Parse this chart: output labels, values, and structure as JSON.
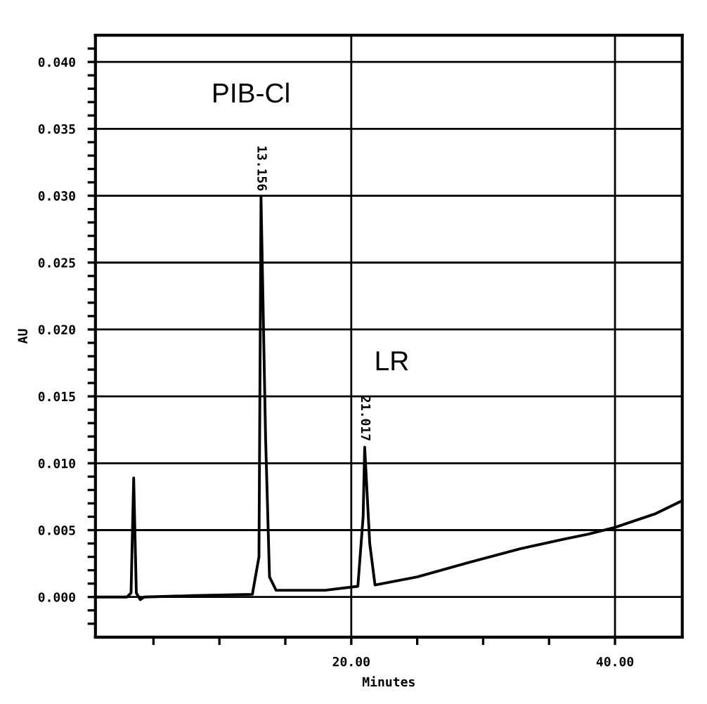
{
  "chart_data": {
    "type": "line",
    "xlabel": "Minutes",
    "ylabel": "AU",
    "x": [
      0.6,
      3.0,
      3.3,
      3.5,
      3.7,
      4.0,
      4.3,
      8.0,
      12.5,
      13.0,
      13.156,
      13.5,
      13.8,
      14.3,
      18.0,
      20.5,
      20.9,
      21.017,
      21.4,
      21.8,
      25.0,
      29.0,
      32.8,
      36.0,
      38.0,
      40.0,
      43.0,
      45.1
    ],
    "series": [
      {
        "color": "#000000",
        "values": [
          0.0,
          0.0,
          0.0003,
          0.0089,
          0.0003,
          -0.0002,
          0.0,
          0.0001,
          0.0002,
          0.003,
          0.0299,
          0.012,
          0.0015,
          0.0005,
          0.0005,
          0.0008,
          0.006,
          0.0112,
          0.004,
          0.0009,
          0.0015,
          0.0026,
          0.0036,
          0.0043,
          0.0047,
          0.0052,
          0.0062,
          0.0072
        ]
      }
    ],
    "xlim": [
      0.6,
      45.1
    ],
    "ylim": [
      -0.003,
      0.042
    ],
    "xticks": [
      {
        "value": 5,
        "label": null
      },
      {
        "value": 10,
        "label": null
      },
      {
        "value": 15,
        "label": null
      },
      {
        "value": 20,
        "label": "20.00"
      },
      {
        "value": 25,
        "label": null
      },
      {
        "value": 30,
        "label": null
      },
      {
        "value": 35,
        "label": null
      },
      {
        "value": 40,
        "label": "40.00"
      }
    ],
    "yticks": [
      {
        "value": -0.002,
        "label": null
      },
      {
        "value": -0.001,
        "label": null
      },
      {
        "value": 0.0,
        "label": "0.000"
      },
      {
        "value": 0.001,
        "label": null
      },
      {
        "value": 0.002,
        "label": null
      },
      {
        "value": 0.003,
        "label": null
      },
      {
        "value": 0.004,
        "label": null
      },
      {
        "value": 0.005,
        "label": "0.005"
      },
      {
        "value": 0.006,
        "label": null
      },
      {
        "value": 0.007,
        "label": null
      },
      {
        "value": 0.008,
        "label": null
      },
      {
        "value": 0.009,
        "label": null
      },
      {
        "value": 0.01,
        "label": "0.010"
      },
      {
        "value": 0.011,
        "label": null
      },
      {
        "value": 0.012,
        "label": null
      },
      {
        "value": 0.013,
        "label": null
      },
      {
        "value": 0.014,
        "label": null
      },
      {
        "value": 0.015,
        "label": "0.015"
      },
      {
        "value": 0.016,
        "label": null
      },
      {
        "value": 0.017,
        "label": null
      },
      {
        "value": 0.018,
        "label": null
      },
      {
        "value": 0.019,
        "label": null
      },
      {
        "value": 0.02,
        "label": "0.020"
      },
      {
        "value": 0.021,
        "label": null
      },
      {
        "value": 0.022,
        "label": null
      },
      {
        "value": 0.023,
        "label": null
      },
      {
        "value": 0.024,
        "label": null
      },
      {
        "value": 0.025,
        "label": "0.025"
      },
      {
        "value": 0.026,
        "label": null
      },
      {
        "value": 0.027,
        "label": null
      },
      {
        "value": 0.028,
        "label": null
      },
      {
        "value": 0.029,
        "label": null
      },
      {
        "value": 0.03,
        "label": "0.030"
      },
      {
        "value": 0.031,
        "label": null
      },
      {
        "value": 0.032,
        "label": null
      },
      {
        "value": 0.033,
        "label": null
      },
      {
        "value": 0.034,
        "label": null
      },
      {
        "value": 0.035,
        "label": "0.035"
      },
      {
        "value": 0.036,
        "label": null
      },
      {
        "value": 0.037,
        "label": null
      },
      {
        "value": 0.038,
        "label": null
      },
      {
        "value": 0.039,
        "label": null
      },
      {
        "value": 0.04,
        "label": "0.040"
      },
      {
        "value": 0.041,
        "label": null
      }
    ],
    "grid": true,
    "marker": "none",
    "line_style": "solid",
    "annotations": [
      "PIB-Cl",
      {
        "text": "13.156",
        "x": 13.156,
        "y": 0.0299
      },
      "LR",
      {
        "text": "21.017",
        "x": 21.017,
        "y": 0.0112
      }
    ]
  }
}
